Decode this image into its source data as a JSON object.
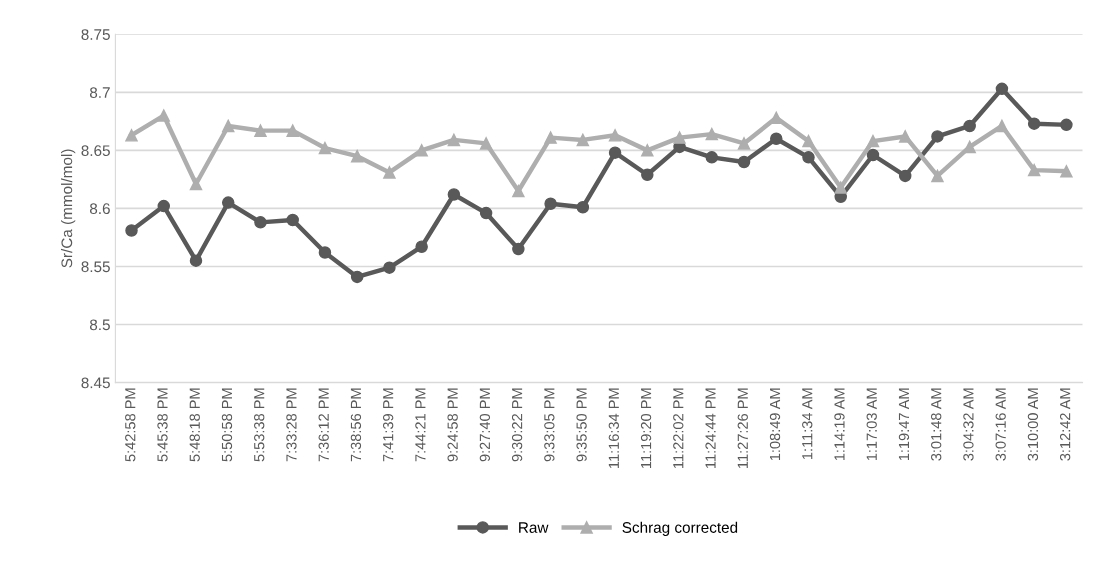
{
  "chart_data": {
    "type": "line",
    "ylabel": "Sr/Ca (mmol/mol)",
    "categories": [
      "5:42:58 PM",
      "5:45:38 PM",
      "5:48:18 PM",
      "5:50:58 PM",
      "5:53:38 PM",
      "7:33:28 PM",
      "7:36:12 PM",
      "7:38:56 PM",
      "7:41:39 PM",
      "7:44:21 PM",
      "9:24:58 PM",
      "9:27:40 PM",
      "9:30:22 PM",
      "9:33:05 PM",
      "9:35:50 PM",
      "11:16:34 PM",
      "11:19:20 PM",
      "11:22:02 PM",
      "11:24:44 PM",
      "11:27:26 PM",
      "1:08:49 AM",
      "1:11:34 AM",
      "1:14:19 AM",
      "1:17:03 AM",
      "1:19:47 AM",
      "3:01:48 AM",
      "3:04:32 AM",
      "3:07:16 AM",
      "3:10:00 AM",
      "3:12:42 AM"
    ],
    "series": [
      {
        "name": "Raw",
        "color": "#595959",
        "marker": "circle",
        "values": [
          8.581,
          8.602,
          8.555,
          8.605,
          8.588,
          8.59,
          8.562,
          8.541,
          8.549,
          8.567,
          8.612,
          8.596,
          8.565,
          8.604,
          8.601,
          8.648,
          8.629,
          8.653,
          8.644,
          8.64,
          8.66,
          8.644,
          8.61,
          8.646,
          8.628,
          8.662,
          8.671,
          8.703,
          8.673,
          8.672
        ]
      },
      {
        "name": "Schrag corrected",
        "color": "#aeaeae",
        "marker": "triangle",
        "values": [
          8.663,
          8.68,
          8.621,
          8.671,
          8.667,
          8.667,
          8.652,
          8.645,
          8.631,
          8.65,
          8.659,
          8.656,
          8.615,
          8.661,
          8.659,
          8.663,
          8.65,
          8.661,
          8.664,
          8.656,
          8.678,
          8.658,
          8.618,
          8.658,
          8.662,
          8.628,
          8.653,
          8.671,
          8.633,
          8.632
        ]
      }
    ],
    "ylim": [
      8.45,
      8.75
    ],
    "yticks": [
      8.45,
      8.5,
      8.55,
      8.6,
      8.65,
      8.7,
      8.75
    ],
    "grid": "y",
    "legend": "bottom",
    "line_style": "solid"
  }
}
